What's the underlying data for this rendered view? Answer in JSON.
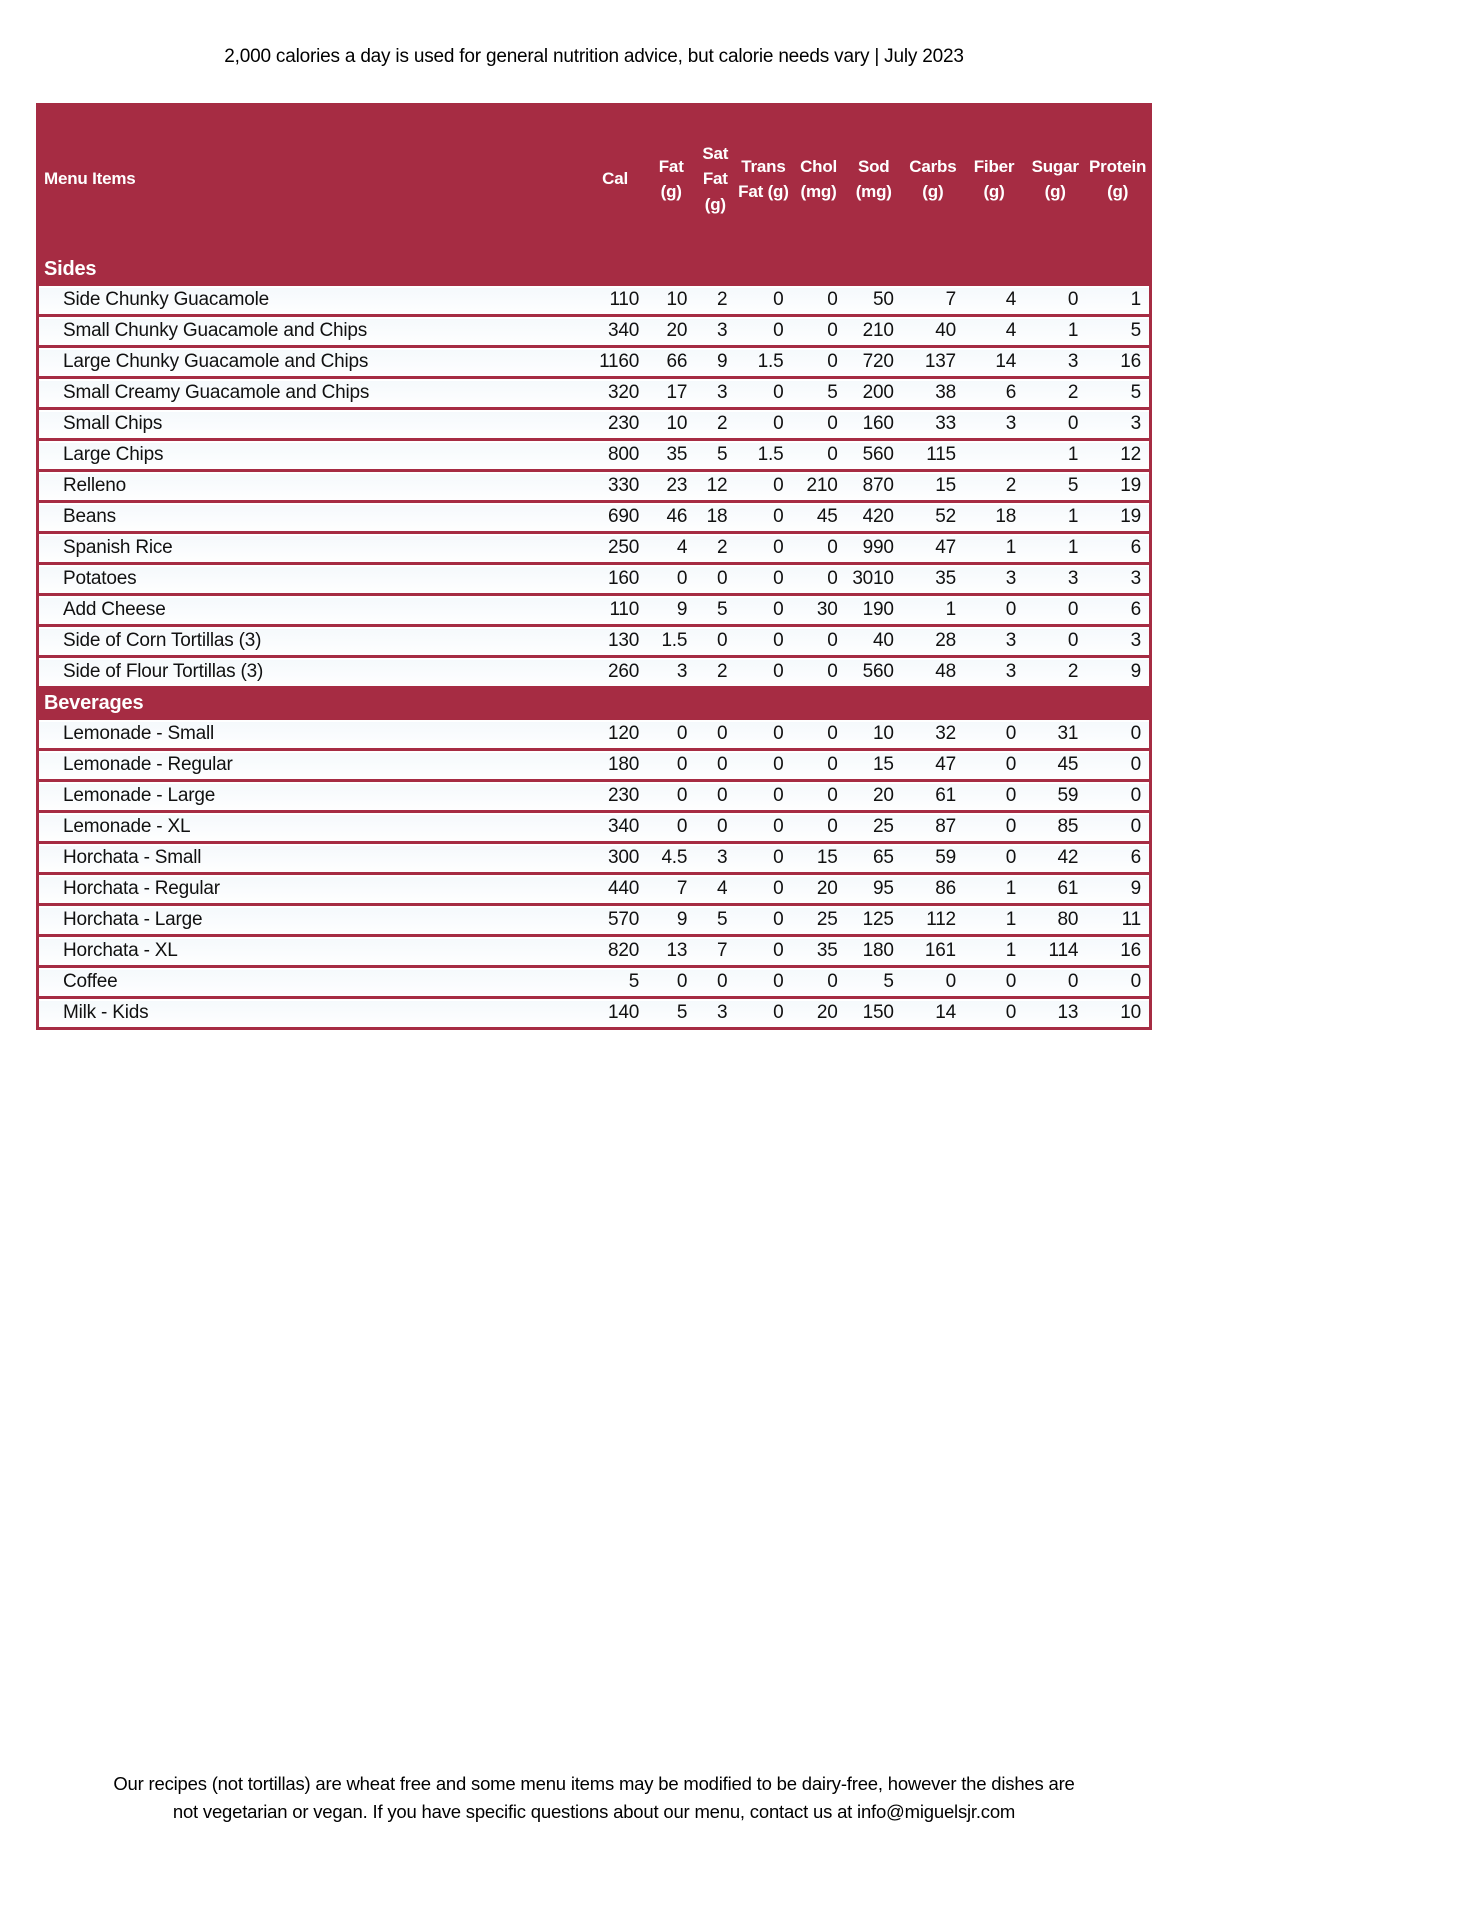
{
  "top_note": "2,000 calories a day is used for general nutrition advice, but calorie needs vary | July 2023",
  "footer": {
    "line1": "Our recipes (not tortillas) are wheat free and some menu items may be modified to be dairy-free, however the dishes are",
    "line2": "not vegetarian or vegan. If you have specific questions about our menu, contact us at info@miguelsjr.com"
  },
  "colors": {
    "maroon": "#A62C43",
    "row_background": "#FDFDFE",
    "header_text": "#FFFFFF",
    "body_text": "#111111"
  },
  "table": {
    "menu_items_header": "Menu Items",
    "nutrient_columns": [
      "Cal",
      "Fat (g)",
      "Sat Fat (g)",
      "Trans Fat (g)",
      "Chol (mg)",
      "Sod (mg)",
      "Carbs (g)",
      "Fiber (g)",
      "Sugar (g)",
      "Protein (g)"
    ],
    "sections": [
      {
        "name": "Sides",
        "rows": [
          {
            "item": "Side Chunky Guacamole",
            "values": [
              "110",
              "10",
              "2",
              "0",
              "0",
              "50",
              "7",
              "4",
              "0",
              "1"
            ]
          },
          {
            "item": "Small Chunky Guacamole and Chips",
            "values": [
              "340",
              "20",
              "3",
              "0",
              "0",
              "210",
              "40",
              "4",
              "1",
              "5"
            ]
          },
          {
            "item": "Large Chunky Guacamole and Chips",
            "values": [
              "1160",
              "66",
              "9",
              "1.5",
              "0",
              "720",
              "137",
              "14",
              "3",
              "16"
            ]
          },
          {
            "item": "Small Creamy Guacamole and Chips",
            "values": [
              "320",
              "17",
              "3",
              "0",
              "5",
              "200",
              "38",
              "6",
              "2",
              "5"
            ]
          },
          {
            "item": "Small Chips",
            "values": [
              "230",
              "10",
              "2",
              "0",
              "0",
              "160",
              "33",
              "3",
              "0",
              "3"
            ]
          },
          {
            "item": "Large Chips",
            "values": [
              "800",
              "35",
              "5",
              "1.5",
              "0",
              "560",
              "115",
              "",
              "1",
              "12"
            ]
          },
          {
            "item": "Relleno",
            "values": [
              "330",
              "23",
              "12",
              "0",
              "210",
              "870",
              "15",
              "2",
              "5",
              "19"
            ]
          },
          {
            "item": "Beans",
            "values": [
              "690",
              "46",
              "18",
              "0",
              "45",
              "420",
              "52",
              "18",
              "1",
              "19"
            ]
          },
          {
            "item": "Spanish Rice",
            "values": [
              "250",
              "4",
              "2",
              "0",
              "0",
              "990",
              "47",
              "1",
              "1",
              "6"
            ]
          },
          {
            "item": "Potatoes",
            "values": [
              "160",
              "0",
              "0",
              "0",
              "0",
              "3010",
              "35",
              "3",
              "3",
              "3"
            ]
          },
          {
            "item": "Add Cheese",
            "values": [
              "110",
              "9",
              "5",
              "0",
              "30",
              "190",
              "1",
              "0",
              "0",
              "6"
            ]
          },
          {
            "item": "Side of Corn Tortillas (3)",
            "values": [
              "130",
              "1.5",
              "0",
              "0",
              "0",
              "40",
              "28",
              "3",
              "0",
              "3"
            ]
          },
          {
            "item": "Side of Flour Tortillas (3)",
            "values": [
              "260",
              "3",
              "2",
              "0",
              "0",
              "560",
              "48",
              "3",
              "2",
              "9"
            ]
          }
        ]
      },
      {
        "name": "Beverages",
        "rows": [
          {
            "item": "Lemonade - Small",
            "values": [
              "120",
              "0",
              "0",
              "0",
              "0",
              "10",
              "32",
              "0",
              "31",
              "0"
            ]
          },
          {
            "item": "Lemonade - Regular",
            "values": [
              "180",
              "0",
              "0",
              "0",
              "0",
              "15",
              "47",
              "0",
              "45",
              "0"
            ]
          },
          {
            "item": "Lemonade - Large",
            "values": [
              "230",
              "0",
              "0",
              "0",
              "0",
              "20",
              "61",
              "0",
              "59",
              "0"
            ]
          },
          {
            "item": "Lemonade - XL",
            "values": [
              "340",
              "0",
              "0",
              "0",
              "0",
              "25",
              "87",
              "0",
              "85",
              "0"
            ]
          },
          {
            "item": "Horchata - Small",
            "values": [
              "300",
              "4.5",
              "3",
              "0",
              "15",
              "65",
              "59",
              "0",
              "42",
              "6"
            ]
          },
          {
            "item": "Horchata - Regular",
            "values": [
              "440",
              "7",
              "4",
              "0",
              "20",
              "95",
              "86",
              "1",
              "61",
              "9"
            ]
          },
          {
            "item": "Horchata - Large",
            "values": [
              "570",
              "9",
              "5",
              "0",
              "25",
              "125",
              "112",
              "1",
              "80",
              "11"
            ]
          },
          {
            "item": "Horchata - XL",
            "values": [
              "820",
              "13",
              "7",
              "0",
              "35",
              "180",
              "161",
              "1",
              "114",
              "16"
            ]
          },
          {
            "item": "Coffee",
            "values": [
              "5",
              "0",
              "0",
              "0",
              "0",
              "5",
              "0",
              "0",
              "0",
              "0"
            ]
          },
          {
            "item": "Milk - Kids",
            "values": [
              "140",
              "5",
              "3",
              "0",
              "20",
              "150",
              "14",
              "0",
              "13",
              "10"
            ]
          }
        ]
      }
    ]
  }
}
